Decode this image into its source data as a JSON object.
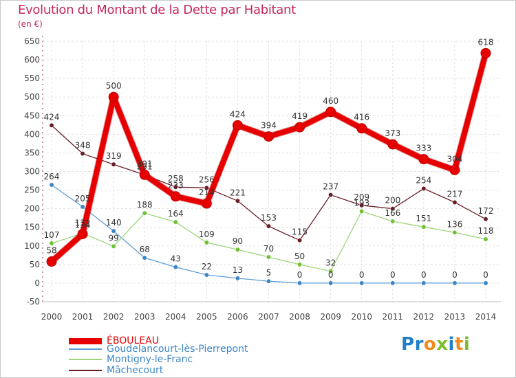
{
  "header": {
    "title": "Evolution du Montant de la Dette par Habitant",
    "subtitle": "(en €)"
  },
  "brand": {
    "text": "Proxiti",
    "colors": [
      "#1f7fc8",
      "#1f7fc8",
      "#f08a1c",
      "#7cbd2f",
      "#1f7fc8",
      "#f08a1c",
      "#7cbd2f"
    ]
  },
  "chart_data": {
    "type": "line",
    "title": "Evolution du Montant de la Dette par Habitant",
    "subtitle": "(en €)",
    "xlabel": "",
    "ylabel": "",
    "x": [
      "2000",
      "2001",
      "2002",
      "2003",
      "2004",
      "2005",
      "2006",
      "2007",
      "2008",
      "2009",
      "2010",
      "2011",
      "2012",
      "2013",
      "2014"
    ],
    "ylim": [
      -50,
      650
    ],
    "yticks": [
      -50,
      0,
      50,
      100,
      150,
      200,
      250,
      300,
      350,
      400,
      450,
      500,
      550,
      600,
      650
    ],
    "grid": true,
    "legend_position": "bottom-left",
    "series": [
      {
        "name": "ÉBOULEAU",
        "color": "#e60000",
        "emphasis": true,
        "values": [
          58,
          132,
          500,
          291,
          233,
          214,
          424,
          394,
          419,
          460,
          416,
          373,
          333,
          304,
          618
        ],
        "labels": [
          "58",
          "132",
          "500",
          "291",
          "233",
          "214",
          "424",
          "394",
          "419",
          "460",
          "416",
          "373",
          "333",
          "304",
          "618"
        ]
      },
      {
        "name": "Goudelancourt-lès-Pierrepont",
        "color": "#5b9bd5",
        "point": "#3c86c8",
        "values": [
          264,
          205,
          140,
          68,
          43,
          22,
          13,
          5,
          0,
          0,
          0,
          0,
          0,
          0,
          0
        ],
        "labels": [
          "264",
          "205",
          "140",
          "68",
          "43",
          "22",
          "13",
          "5",
          "0",
          "0",
          "0",
          "0",
          "0",
          "0",
          "0"
        ]
      },
      {
        "name": "Montigny-le-Franc",
        "color": "#9cd67a",
        "point": "#72c034",
        "values": [
          107,
          134,
          99,
          188,
          164,
          109,
          90,
          70,
          50,
          32,
          193,
          166,
          151,
          136,
          118
        ],
        "labels": [
          "107",
          "134",
          "99",
          "188",
          "164",
          "109",
          "90",
          "70",
          "50",
          "32",
          "193",
          "166",
          "151",
          "136",
          "118"
        ]
      },
      {
        "name": "Mâchecourt",
        "color": "#6b1d27",
        "point": "#6b1d27",
        "values": [
          424,
          348,
          319,
          291,
          258,
          256,
          221,
          153,
          115,
          237,
          209,
          200,
          254,
          217,
          172
        ],
        "labels": [
          "424",
          "348",
          "319",
          "291",
          "258",
          "256",
          "221",
          "153",
          "115",
          "237",
          "209",
          "200",
          "254",
          "217",
          "172"
        ]
      }
    ]
  }
}
